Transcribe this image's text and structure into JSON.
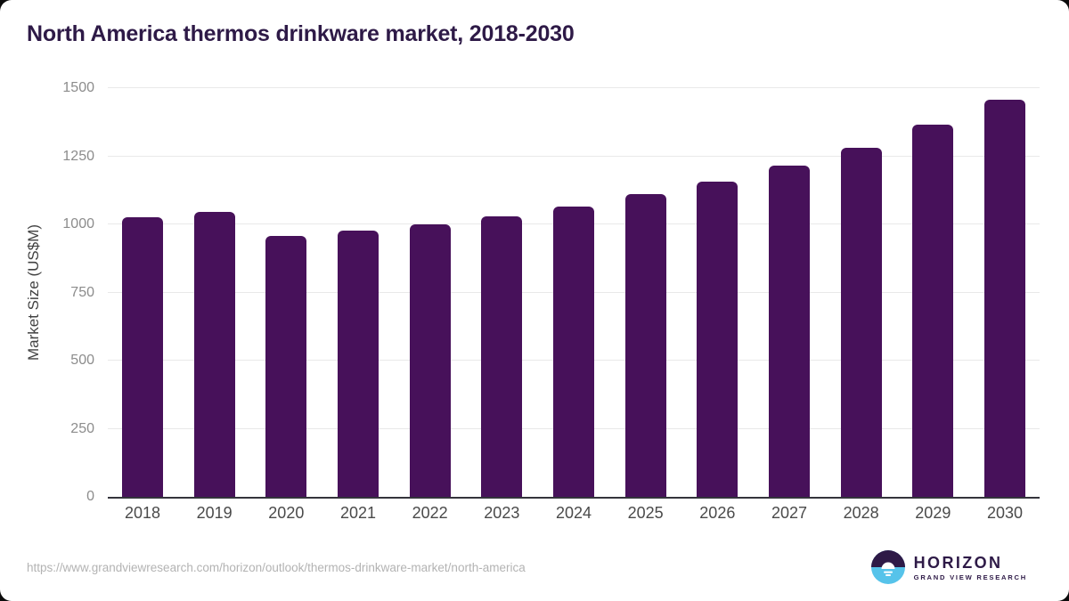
{
  "chart_data": {
    "type": "bar",
    "title": "North America thermos drinkware market, 2018-2030",
    "categories": [
      "2018",
      "2019",
      "2020",
      "2021",
      "2022",
      "2023",
      "2024",
      "2025",
      "2026",
      "2027",
      "2028",
      "2029",
      "2030"
    ],
    "values": [
      1025,
      1045,
      958,
      978,
      1000,
      1030,
      1065,
      1110,
      1157,
      1216,
      1282,
      1365,
      1458
    ],
    "xlabel": "",
    "ylabel": "Market Size (US$M)",
    "ylim": [
      0,
      1500
    ],
    "yticks": [
      0,
      250,
      500,
      750,
      1000,
      1250,
      1500
    ],
    "grid": true,
    "legend": "none",
    "bar_color": "#47115A"
  },
  "footer": {
    "source_url": "https://www.grandviewresearch.com/horizon/outlook/thermos-drinkware-market/north-america",
    "logo": {
      "wordmark": "HORIZON",
      "subtitle": "GRAND VIEW RESEARCH"
    }
  },
  "colors": {
    "card_bg": "#FFFFFF",
    "outside_bg": "#0C0C0C",
    "title": "#2E1A47",
    "bar": "#47115A",
    "gridline": "#E9E9E9",
    "axis_line": "#34343C",
    "y_tick_label": "#8C8C8C",
    "x_tick_label": "#4A4A4A",
    "axis_title": "#424242",
    "source_url": "#B3B3B3",
    "logo_purple": "#2E1A47",
    "logo_blue": "#56C3EA"
  }
}
